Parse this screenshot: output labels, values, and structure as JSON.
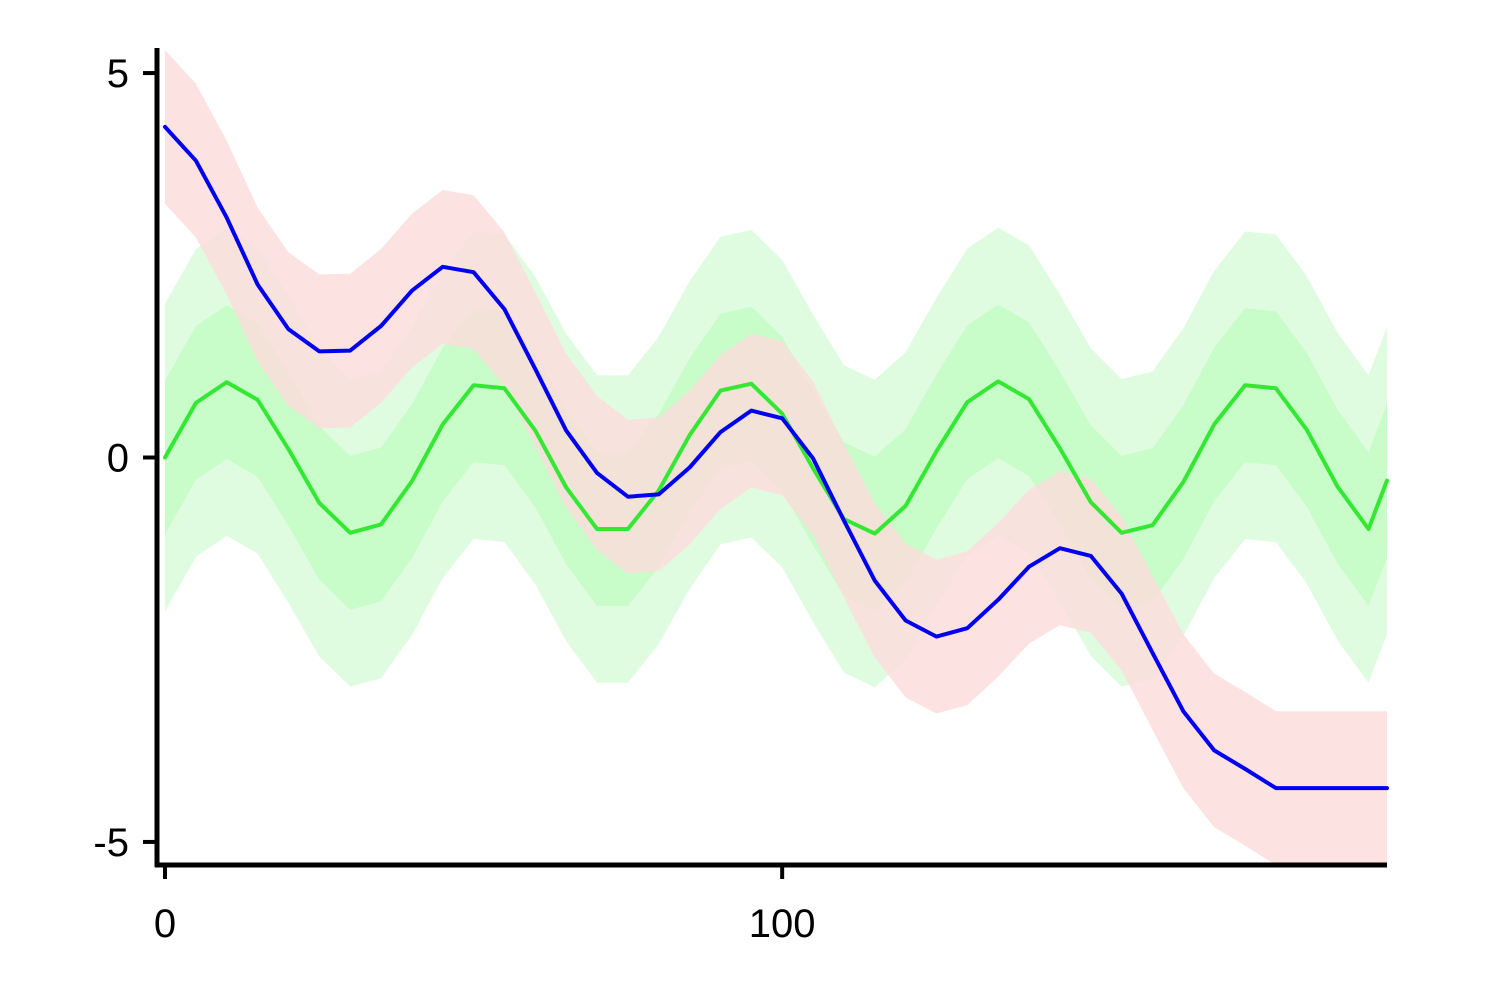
{
  "chart_data": {
    "type": "line",
    "title": "",
    "xlabel": "",
    "ylabel": "",
    "xlim": [
      0,
      198
    ],
    "ylim": [
      -5.3,
      5.3
    ],
    "x_ticks": [
      0,
      100
    ],
    "y_ticks": [
      5,
      0,
      -5
    ],
    "grid": false,
    "legend": "none",
    "bands": [
      {
        "color": "#e0fce0",
        "x": [
          0,
          5,
          10,
          15,
          20,
          25,
          30,
          35,
          40,
          45,
          50,
          55,
          60,
          65,
          70,
          75,
          80,
          85,
          90,
          95,
          100,
          105,
          110,
          115,
          120,
          125,
          130,
          135,
          140,
          145,
          150,
          155,
          160,
          165,
          170,
          175,
          180,
          185,
          190,
          195,
          198
        ],
        "lower": [
          -2.0,
          -1.29,
          -1.02,
          -1.25,
          -1.89,
          -2.59,
          -2.98,
          -2.87,
          -2.31,
          -1.57,
          -1.06,
          -1.1,
          -1.65,
          -2.39,
          -2.93,
          -2.93,
          -2.43,
          -1.71,
          -1.13,
          -1.04,
          -1.43,
          -2.14,
          -2.8,
          -2.99,
          -2.63,
          -1.92,
          -1.28,
          -1.01,
          -1.24,
          -1.88,
          -2.58,
          -2.98,
          -2.88,
          -2.32,
          -1.57,
          -1.06,
          -1.1,
          -1.64,
          -2.38,
          -2.93,
          -2.3
        ],
        "upper": [
          2.0,
          2.71,
          2.98,
          2.75,
          2.11,
          1.41,
          1.02,
          1.13,
          1.69,
          2.43,
          2.94,
          2.9,
          2.35,
          1.61,
          1.07,
          1.07,
          1.57,
          2.29,
          2.87,
          2.96,
          2.57,
          1.86,
          1.2,
          1.01,
          1.37,
          2.08,
          2.72,
          2.99,
          2.76,
          2.12,
          1.42,
          1.02,
          1.12,
          1.68,
          2.43,
          2.94,
          2.9,
          2.36,
          1.62,
          1.07,
          1.7
        ]
      },
      {
        "color": "#c8fcc8",
        "x": [
          0,
          5,
          10,
          15,
          20,
          25,
          30,
          35,
          40,
          45,
          50,
          55,
          60,
          65,
          70,
          75,
          80,
          85,
          90,
          95,
          100,
          105,
          110,
          115,
          120,
          125,
          130,
          135,
          140,
          145,
          150,
          155,
          160,
          165,
          170,
          175,
          180,
          185,
          190,
          195,
          198
        ],
        "lower": [
          -1.0,
          -0.29,
          -0.02,
          -0.25,
          -0.89,
          -1.59,
          -1.98,
          -1.87,
          -1.31,
          -0.57,
          -0.06,
          -0.1,
          -0.65,
          -1.39,
          -1.93,
          -1.93,
          -1.43,
          -0.71,
          -0.13,
          -0.04,
          -0.43,
          -1.14,
          -1.8,
          -1.99,
          -1.63,
          -0.92,
          -0.28,
          -0.01,
          -0.24,
          -0.88,
          -1.58,
          -1.98,
          -1.88,
          -1.32,
          -0.57,
          -0.06,
          -0.1,
          -0.64,
          -1.38,
          -1.93,
          -1.3
        ],
        "upper": [
          1.0,
          1.71,
          1.98,
          1.75,
          1.11,
          0.41,
          0.02,
          0.13,
          0.69,
          1.43,
          1.94,
          1.9,
          1.35,
          0.61,
          0.07,
          0.07,
          0.57,
          1.29,
          1.87,
          1.96,
          1.57,
          0.86,
          0.2,
          0.01,
          0.37,
          1.08,
          1.72,
          1.99,
          1.76,
          1.12,
          0.42,
          0.02,
          0.12,
          0.68,
          1.43,
          1.94,
          1.9,
          1.36,
          0.62,
          0.07,
          0.7
        ]
      },
      {
        "color": "#fcdcdc",
        "opacity": 0.82,
        "x": [
          0,
          5,
          10,
          15,
          20,
          25,
          30,
          35,
          40,
          45,
          50,
          55,
          60,
          65,
          70,
          75,
          80,
          85,
          90,
          95,
          100,
          105,
          110,
          115,
          120,
          125,
          130,
          135,
          140,
          145,
          150,
          155,
          160,
          165,
          170,
          175,
          180,
          185,
          190,
          195,
          198
        ],
        "lower": [
          3.3,
          2.86,
          2.12,
          1.25,
          0.67,
          0.38,
          0.39,
          0.71,
          1.17,
          1.48,
          1.41,
          0.93,
          0.15,
          -0.65,
          -1.2,
          -1.51,
          -1.48,
          -1.13,
          -0.67,
          -0.39,
          -0.49,
          -1.01,
          -1.82,
          -2.6,
          -3.12,
          -3.33,
          -3.22,
          -2.85,
          -2.42,
          -2.18,
          -2.28,
          -2.77,
          -3.54,
          -4.3,
          -4.81,
          -5.05,
          -5.3,
          -5.3,
          -5.3,
          -5.3,
          -5.3
        ],
        "upper": [
          5.3,
          4.86,
          4.12,
          3.25,
          2.67,
          2.38,
          2.39,
          2.71,
          3.17,
          3.48,
          3.41,
          2.93,
          2.15,
          1.35,
          0.8,
          0.49,
          0.52,
          0.87,
          1.33,
          1.61,
          1.51,
          0.99,
          0.18,
          -0.6,
          -1.12,
          -1.33,
          -1.22,
          -0.85,
          -0.42,
          -0.18,
          -0.28,
          -0.77,
          -1.54,
          -2.3,
          -2.81,
          -3.05,
          -3.3,
          -3.3,
          -3.3,
          -3.3,
          -3.3
        ]
      }
    ],
    "series": [
      {
        "color": "#33e833",
        "x": [
          0,
          5,
          10,
          15,
          20,
          25,
          30,
          35,
          40,
          45,
          50,
          55,
          60,
          65,
          70,
          75,
          80,
          85,
          90,
          95,
          100,
          105,
          110,
          115,
          120,
          125,
          130,
          135,
          140,
          145,
          150,
          155,
          160,
          165,
          170,
          175,
          180,
          185,
          190,
          195,
          198
        ],
        "y": [
          0.0,
          0.71,
          0.98,
          0.75,
          0.11,
          -0.59,
          -0.98,
          -0.87,
          -0.31,
          0.43,
          0.94,
          0.9,
          0.35,
          -0.39,
          -0.93,
          -0.93,
          -0.43,
          0.29,
          0.87,
          0.96,
          0.57,
          -0.14,
          -0.8,
          -0.99,
          -0.63,
          0.08,
          0.72,
          0.99,
          0.76,
          0.12,
          -0.58,
          -0.98,
          -0.88,
          -0.32,
          0.43,
          0.94,
          0.9,
          0.36,
          -0.38,
          -0.93,
          -0.3
        ]
      },
      {
        "color": "#0000f0",
        "x": [
          0,
          5,
          10,
          15,
          20,
          25,
          30,
          35,
          40,
          45,
          50,
          55,
          60,
          65,
          70,
          75,
          80,
          85,
          90,
          95,
          100,
          105,
          110,
          115,
          120,
          125,
          130,
          135,
          140,
          145,
          150,
          155,
          160,
          165,
          170,
          175,
          180,
          185,
          190,
          195,
          198
        ],
        "y": [
          4.3,
          3.86,
          3.12,
          2.25,
          1.67,
          1.38,
          1.39,
          1.71,
          2.17,
          2.48,
          2.41,
          1.93,
          1.15,
          0.35,
          -0.2,
          -0.51,
          -0.48,
          -0.13,
          0.33,
          0.61,
          0.51,
          -0.01,
          -0.82,
          -1.6,
          -2.12,
          -2.33,
          -2.22,
          -1.85,
          -1.42,
          -1.18,
          -1.28,
          -1.77,
          -2.54,
          -3.3,
          -3.81,
          -4.05,
          -4.3,
          -4.3,
          -4.3,
          -4.3,
          -4.3
        ]
      }
    ]
  }
}
